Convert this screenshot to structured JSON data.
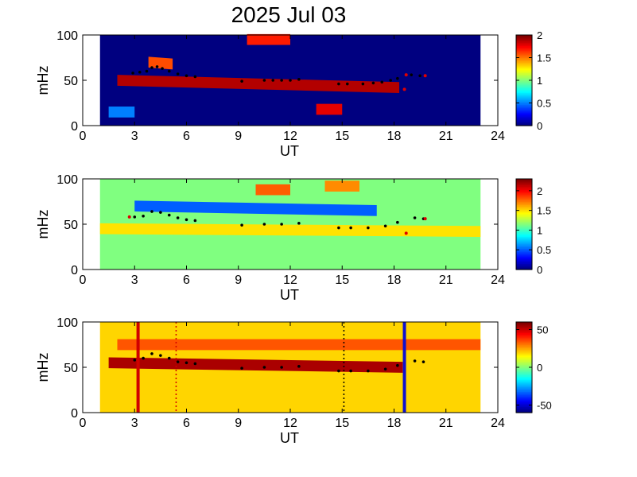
{
  "title": "2025 Jul 03",
  "chart_data": [
    {
      "type": "heatmap",
      "panel": "top",
      "xlabel": "UT",
      "ylabel": "mHz",
      "xlim": [
        0,
        24
      ],
      "ylim": [
        0,
        100
      ],
      "xticks": [
        "0",
        "3",
        "6",
        "9",
        "12",
        "15",
        "18",
        "21",
        "24"
      ],
      "yticks": [
        "0",
        "50",
        "100"
      ],
      "data_xrange": [
        1,
        23
      ],
      "colorbar": {
        "range": [
          0,
          2
        ],
        "ticks": [
          "0",
          "0.5",
          "1",
          "1.5",
          "2"
        ],
        "colormap": "jet"
      },
      "background_value": 0,
      "features": [
        {
          "x": [
            2,
            18.3
          ],
          "y_center": [
            50,
            42
          ],
          "value": 1.9
        },
        {
          "x": [
            3.8,
            5.2
          ],
          "y_center": [
            70,
            68
          ],
          "value": 1.6
        },
        {
          "x": [
            9.5,
            12
          ],
          "y_center": [
            95,
            95
          ],
          "value": 1.7
        },
        {
          "x": [
            13.5,
            15
          ],
          "y_center": [
            18,
            18
          ],
          "value": 1.8
        },
        {
          "x": [
            1.5,
            3
          ],
          "y_center": [
            15,
            15
          ],
          "value": 0.5
        }
      ],
      "ridge_markers": {
        "color": "black",
        "points": [
          [
            2.9,
            58
          ],
          [
            3.3,
            59
          ],
          [
            3.7,
            60
          ],
          [
            4.0,
            64
          ],
          [
            4.3,
            65
          ],
          [
            4.6,
            63
          ],
          [
            5.0,
            60
          ],
          [
            5.5,
            57
          ],
          [
            6.0,
            55
          ],
          [
            6.5,
            54
          ],
          [
            9.2,
            49
          ],
          [
            10.5,
            50
          ],
          [
            11.0,
            50
          ],
          [
            11.5,
            50
          ],
          [
            12.0,
            50
          ],
          [
            12.5,
            51
          ],
          [
            14.8,
            46
          ],
          [
            15.3,
            46
          ],
          [
            16.2,
            46
          ],
          [
            16.8,
            47
          ],
          [
            17.3,
            48
          ],
          [
            17.8,
            50
          ],
          [
            18.2,
            52
          ],
          [
            19.0,
            56
          ],
          [
            19.5,
            55
          ]
        ]
      },
      "red_markers": [
        [
          18.7,
          56
        ],
        [
          18.6,
          40
        ],
        [
          19.8,
          55
        ]
      ]
    },
    {
      "type": "heatmap",
      "panel": "middle",
      "xlabel": "UT",
      "ylabel": "mHz",
      "xlim": [
        0,
        24
      ],
      "ylim": [
        0,
        100
      ],
      "xticks": [
        "0",
        "3",
        "6",
        "9",
        "12",
        "15",
        "18",
        "21",
        "24"
      ],
      "yticks": [
        "0",
        "50",
        "100"
      ],
      "data_xrange": [
        1,
        23
      ],
      "colorbar": {
        "range": [
          0,
          2.3
        ],
        "ticks": [
          "0",
          "0.5",
          "1",
          "1.5",
          "2"
        ],
        "colormap": "jet"
      },
      "background_value": 1.15,
      "features": [
        {
          "x": [
            1,
            23
          ],
          "y_center": [
            45,
            42
          ],
          "value": 1.5
        },
        {
          "x": [
            3,
            17
          ],
          "y_center": [
            70,
            65
          ],
          "value": 0.5
        },
        {
          "x": [
            10,
            12
          ],
          "y_center": [
            88,
            88
          ],
          "value": 1.8
        },
        {
          "x": [
            14,
            16
          ],
          "y_center": [
            92,
            92
          ],
          "value": 1.7
        }
      ],
      "ridge_markers": {
        "color": "black",
        "points": [
          [
            3.0,
            58
          ],
          [
            3.5,
            59
          ],
          [
            4.0,
            64
          ],
          [
            4.5,
            63
          ],
          [
            5.0,
            60
          ],
          [
            5.5,
            57
          ],
          [
            6.0,
            55
          ],
          [
            6.5,
            54
          ],
          [
            9.2,
            49
          ],
          [
            10.5,
            50
          ],
          [
            11.5,
            50
          ],
          [
            12.5,
            51
          ],
          [
            14.8,
            46
          ],
          [
            15.5,
            46
          ],
          [
            16.5,
            46
          ],
          [
            17.5,
            48
          ],
          [
            18.2,
            52
          ],
          [
            19.2,
            57
          ],
          [
            19.7,
            56
          ]
        ]
      },
      "red_markers": [
        [
          2.7,
          58
        ],
        [
          18.7,
          40
        ],
        [
          19.8,
          56
        ]
      ]
    },
    {
      "type": "heatmap",
      "panel": "bottom",
      "xlabel": "UT",
      "ylabel": "mHz",
      "xlim": [
        0,
        24
      ],
      "ylim": [
        0,
        100
      ],
      "xticks": [
        "0",
        "3",
        "6",
        "9",
        "12",
        "15",
        "18",
        "21",
        "24"
      ],
      "yticks": [
        "0",
        "50",
        "100"
      ],
      "data_xrange": [
        1,
        23
      ],
      "colorbar": {
        "range": [
          -60,
          60
        ],
        "ticks": [
          "-50",
          "0",
          "50"
        ],
        "colormap": "jet"
      },
      "background_value": 20,
      "features": [
        {
          "x": [
            1.5,
            18.5
          ],
          "y_center": [
            55,
            50
          ],
          "value": 55
        },
        {
          "x": [
            2,
            23
          ],
          "y_center": [
            75,
            75
          ],
          "value": 35
        }
      ],
      "ridge_markers": {
        "color": "black",
        "points": [
          [
            3.0,
            58
          ],
          [
            3.5,
            60
          ],
          [
            4.0,
            65
          ],
          [
            4.5,
            63
          ],
          [
            5.0,
            60
          ],
          [
            5.5,
            56
          ],
          [
            6.0,
            55
          ],
          [
            6.5,
            54
          ],
          [
            9.2,
            49
          ],
          [
            10.5,
            50
          ],
          [
            11.5,
            50
          ],
          [
            12.5,
            51
          ],
          [
            14.8,
            46
          ],
          [
            15.5,
            46
          ],
          [
            16.5,
            46
          ],
          [
            17.5,
            48
          ],
          [
            18.2,
            52
          ],
          [
            19.2,
            57
          ],
          [
            19.7,
            56
          ]
        ]
      },
      "vertical_lines": [
        {
          "x": 3.2,
          "color": "red",
          "style": "solid"
        },
        {
          "x": 5.4,
          "color": "red",
          "style": "dotted"
        },
        {
          "x": 15.1,
          "color": "black",
          "style": "dotted"
        },
        {
          "x": 18.6,
          "color": "blue",
          "style": "solid"
        }
      ]
    }
  ]
}
